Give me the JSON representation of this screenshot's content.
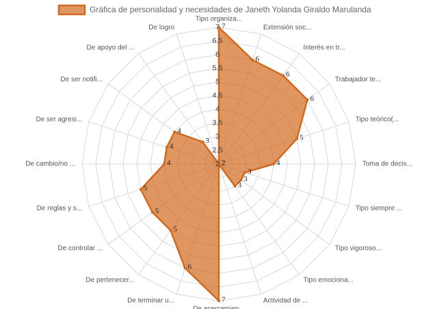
{
  "chart_data": {
    "type": "radar",
    "categories": [
      "Tipo organiza...",
      "Extensión soc...",
      "Interés en tr...",
      "Trabajador te...",
      "Tipo teórico(...",
      "Toma de decis...",
      "Tipo siempre ...",
      "Tipo vigoroso...",
      "Tipo emociona...",
      "Actividad de ...",
      "De acercamien...",
      "De terminar u...",
      "De pertenecer...",
      "De controlar ...",
      "De reglas y s...",
      "De cambio/no ...",
      "De ser agresi...",
      "De ser notifi...",
      "De apoyo del ...",
      "De logro"
    ],
    "series": [
      {
        "name": "Gráfica de personalidad y necesidades de Janeth Yolanda Giraldo Marulanda",
        "color": "#d2691e",
        "values": [
          7,
          6,
          6,
          6,
          5,
          4,
          3,
          3,
          3,
          2,
          7,
          6,
          5,
          5,
          5,
          4,
          4,
          4,
          3,
          2
        ]
      }
    ],
    "rlim": [
      2,
      7
    ],
    "rticks": [
      2,
      2.5,
      3,
      3.5,
      4,
      4.5,
      5,
      5.5,
      6,
      6.5,
      7
    ],
    "grid": true,
    "legend": "top"
  }
}
